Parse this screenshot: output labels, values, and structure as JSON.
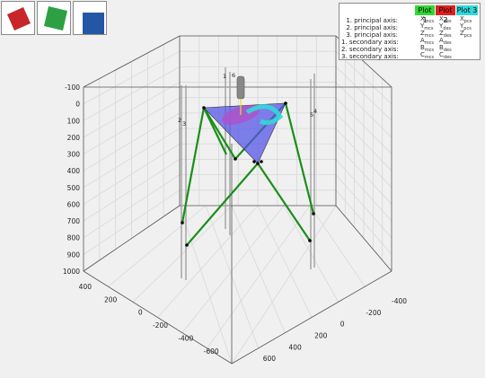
{
  "view_buttons": [
    {
      "name": "view-red-button",
      "color": "#c8262a",
      "icon": "tilted-square-red"
    },
    {
      "name": "view-green-button",
      "color": "#2ea043",
      "icon": "tilted-square-green"
    },
    {
      "name": "view-blue-button",
      "color": "#2456a6",
      "icon": "square-blue"
    }
  ],
  "legend": {
    "plot_buttons": [
      {
        "label": "Plot 1",
        "color": "#33d633"
      },
      {
        "label": "Plot 2",
        "color": "#e02020"
      },
      {
        "label": "Plot 3",
        "color": "#33d9d9"
      }
    ],
    "rows": [
      {
        "label": "1. principal axis:",
        "sym1": "X",
        "sub1": "mcs",
        "sym2": "X",
        "sub2": "des",
        "sym3": "X",
        "sub3": "pcs"
      },
      {
        "label": "2. principal axis:",
        "sym1": "Y",
        "sub1": "mcs",
        "sym2": "Y",
        "sub2": "des",
        "sym3": "Y",
        "sub3": "pcs"
      },
      {
        "label": "3. principal axis:",
        "sym1": "Z",
        "sub1": "mcs",
        "sym2": "Z",
        "sub2": "des",
        "sym3": "Z",
        "sub3": "pcs"
      },
      {
        "label": "1. secondary axis:",
        "sym1": "A",
        "sub1": "mcs",
        "sym2": "A",
        "sub2": "des",
        "sym3": "",
        "sub3": ""
      },
      {
        "label": "2. secondary axis:",
        "sym1": "B",
        "sub1": "mcs",
        "sym2": "B",
        "sub2": "des",
        "sym3": "",
        "sub3": ""
      },
      {
        "label": "3. secondary axis:",
        "sym1": "C",
        "sub1": "mcs",
        "sym2": "C",
        "sub2": "des",
        "sym3": "",
        "sub3": ""
      }
    ]
  },
  "axes": {
    "z_ticks": [
      "-100",
      "0",
      "100",
      "200",
      "300",
      "400",
      "500",
      "600",
      "700",
      "800",
      "900",
      "1000"
    ],
    "left_ticks": [
      "400",
      "200",
      "0",
      "-200",
      "-400",
      "-600"
    ],
    "right_ticks": [
      "-400",
      "-200",
      "0",
      "200",
      "400",
      "600"
    ]
  },
  "actuator_labels": [
    "1",
    "2",
    "3",
    "4",
    "5",
    "6"
  ],
  "colors": {
    "strut": "#1a8f1a",
    "platform": "#5050e6",
    "rails": "#a0a0a0",
    "grid": "#d8d8d8",
    "box": "#555555"
  }
}
